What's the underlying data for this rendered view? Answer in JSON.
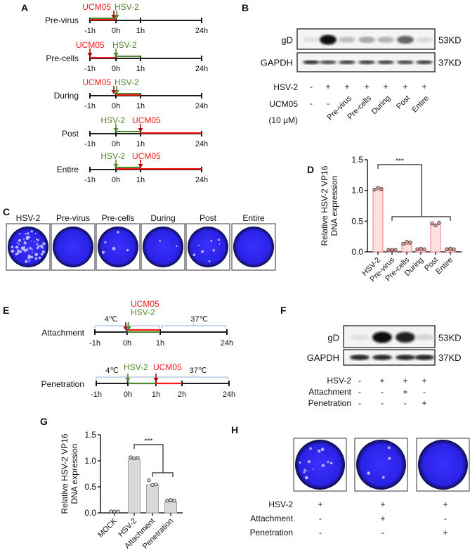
{
  "colors": {
    "red": "#ff1a1a",
    "green": "#4f8a2c",
    "arrow_red": "#b00000",
    "bracket": "#8fb0e0",
    "plate": "#2a22e6",
    "bar_d": "#fde0e0",
    "bar_d_edge": "#f08080",
    "bar_g": "#d9d9d9",
    "bar_g_edge": "#a0a0a0"
  },
  "panel_labels": {
    "a": "A",
    "b": "B",
    "c": "C",
    "d": "D",
    "e": "E",
    "f": "F",
    "g": "G",
    "h": "H"
  },
  "panel_a": {
    "ticks": [
      "-1h",
      "0h",
      "1h",
      "24h"
    ],
    "rows": [
      {
        "label": "Pre-virus",
        "ucm": "UCM05",
        "hsv": "HSV-2",
        "ucm_t": 0,
        "hsv_t": 0,
        "segments": [
          {
            "c": "red",
            "from": -1,
            "to": 0
          },
          {
            "c": "green",
            "from": -1,
            "to": 0
          }
        ]
      },
      {
        "label": "Pre-cells",
        "ucm": "UCM05",
        "hsv": "HSV-2",
        "ucm_t": -1,
        "hsv_t": 0,
        "segments": [
          {
            "c": "red",
            "from": -1,
            "to": 0
          },
          {
            "c": "green",
            "from": 0,
            "to": 1
          }
        ]
      },
      {
        "label": "During",
        "ucm": "UCM05",
        "hsv": "HSV-2",
        "ucm_t": 0,
        "hsv_t": 0,
        "segments": [
          {
            "c": "red",
            "from": 0,
            "to": 1
          },
          {
            "c": "green",
            "from": 0,
            "to": 1
          }
        ]
      },
      {
        "label": "Post",
        "ucm": "UCM05",
        "hsv": "HSV-2",
        "ucm_t": 1,
        "hsv_t": 0,
        "segments": [
          {
            "c": "green",
            "from": 0,
            "to": 1
          },
          {
            "c": "red",
            "from": 1,
            "to": 24
          }
        ]
      },
      {
        "label": "Entire",
        "ucm": "UCM05",
        "hsv": "HSV-2",
        "ucm_t": 1,
        "hsv_t": 0,
        "segments": [
          {
            "c": "red",
            "from": 0,
            "to": 24
          },
          {
            "c": "green",
            "from": 0,
            "to": 1
          }
        ]
      }
    ]
  },
  "panel_b": {
    "blots": [
      {
        "label": "gD",
        "size": "53KD",
        "intensity": [
          0.05,
          1.0,
          0.2,
          0.3,
          0.25,
          0.6,
          0.08
        ]
      },
      {
        "label": "GAPDH",
        "size": "37KD",
        "intensity": [
          0.85,
          0.75,
          0.8,
          0.8,
          0.78,
          0.78,
          0.8
        ]
      }
    ],
    "row_hsv_label": "HSV-2",
    "hsv": [
      "-",
      "+",
      "+",
      "+",
      "+",
      "+",
      "+"
    ],
    "row_ucm_label": "UCM05",
    "row_ucm_sub": "(10 µM)",
    "ucm": [
      "-",
      "-",
      "Pre-virus",
      "Pre-cells",
      "During",
      "Post",
      "Entire"
    ]
  },
  "panel_c": {
    "plates": [
      {
        "label": "HSV-2",
        "plaques": 60
      },
      {
        "label": "Pre-virus",
        "plaques": 0
      },
      {
        "label": "Pre-cells",
        "plaques": 5
      },
      {
        "label": "During",
        "plaques": 2
      },
      {
        "label": "Post",
        "plaques": 8
      },
      {
        "label": "Entire",
        "plaques": 0
      }
    ]
  },
  "chart_data": [
    {
      "type": "bar",
      "title": "",
      "ylabel": "Relative HSV-2 VP16 DNA expression",
      "ylabel_lines": [
        "Relative HSV-2 VP16",
        "DNA expression"
      ],
      "ylim": [
        0,
        1.5
      ],
      "yticks": [
        "0.0",
        "0.5",
        "1.0",
        "1.5"
      ],
      "ytick_values": [
        0,
        0.5,
        1.0,
        1.5
      ],
      "categories": [
        "HSV-2",
        "Pre-virus",
        "Pre-cells",
        "During",
        "Post",
        "Entire"
      ],
      "values": [
        1.0,
        0.01,
        0.12,
        0.02,
        0.44,
        0.02
      ],
      "points": [
        [
          0.99,
          1.02,
          1.0
        ],
        [
          0.01,
          0.01,
          0.01
        ],
        [
          0.11,
          0.14,
          0.13
        ],
        [
          0.02,
          0.03,
          0.02
        ],
        [
          0.44,
          0.41,
          0.45
        ],
        [
          0.02,
          0.03,
          0.02
        ]
      ],
      "significance": "***"
    },
    {
      "type": "bar",
      "title": "",
      "ylabel": "Relative HSV-2 VP16 DNA expression",
      "ylabel_lines": [
        "Relative HSV-2 VP16",
        "DNA expression"
      ],
      "ylim": [
        0,
        1.5
      ],
      "yticks": [
        "0.0",
        "0.5",
        "1.0",
        "1.5"
      ],
      "ytick_values": [
        0,
        0.5,
        1.0,
        1.5
      ],
      "categories": [
        "MOCK",
        "HSV-2",
        "Attachment",
        "Penetration"
      ],
      "values": [
        0.0,
        1.03,
        0.54,
        0.21
      ],
      "points": [
        [
          0,
          0,
          0
        ],
        [
          1.04,
          1.02,
          1.03
        ],
        [
          0.6,
          0.51,
          0.52
        ],
        [
          0.21,
          0.22,
          0.21
        ]
      ],
      "significance": "***"
    }
  ],
  "panel_e": {
    "rows": [
      {
        "label": "Attachment",
        "ticks": [
          "-1h",
          "0h",
          "1h",
          "24h"
        ],
        "ucm": "UCM05",
        "hsv": "HSV-2",
        "ucm_t": 0,
        "hsv_t": 0,
        "segments": [
          {
            "c": "green",
            "from": 0,
            "to": 1
          },
          {
            "c": "red",
            "from": 0,
            "to": 1
          }
        ],
        "cold": "4℃",
        "warm": "37℃"
      },
      {
        "label": "Penetration",
        "ticks": [
          "-1h",
          "0h",
          "1h",
          "2h",
          "24h"
        ],
        "ucm": "UCM05",
        "hsv": "HSV-2",
        "ucm_t": 1,
        "hsv_t": 0,
        "segments": [
          {
            "c": "green",
            "from": 0,
            "to": 1
          },
          {
            "c": "red",
            "from": 1,
            "to": 2
          }
        ],
        "cold": "4℃",
        "warm": "37℃"
      }
    ]
  },
  "panel_f": {
    "blots": [
      {
        "label": "gD",
        "size": "53KD",
        "intensity": [
          0.04,
          1.0,
          0.9,
          0.1
        ]
      },
      {
        "label": "GAPDH",
        "size": "37KD",
        "intensity": [
          0.9,
          0.88,
          0.88,
          0.9
        ]
      }
    ],
    "rows": [
      {
        "label": "HSV-2",
        "values": [
          "-",
          "+",
          "+",
          "+"
        ]
      },
      {
        "label": "Attachment",
        "values": [
          "-",
          "-",
          "+",
          "-"
        ]
      },
      {
        "label": "Penetration",
        "values": [
          "-",
          "-",
          "-",
          "+"
        ]
      }
    ]
  },
  "panel_h": {
    "plates": [
      {
        "plaques": 14
      },
      {
        "plaques": 4
      },
      {
        "plaques": 0
      }
    ],
    "rows": [
      {
        "label": "HSV-2",
        "values": [
          "+",
          "+",
          "+"
        ]
      },
      {
        "label": "Attachment",
        "values": [
          "-",
          "+",
          "-"
        ]
      },
      {
        "label": "Penetration",
        "values": [
          "-",
          "-",
          "+"
        ]
      }
    ]
  }
}
